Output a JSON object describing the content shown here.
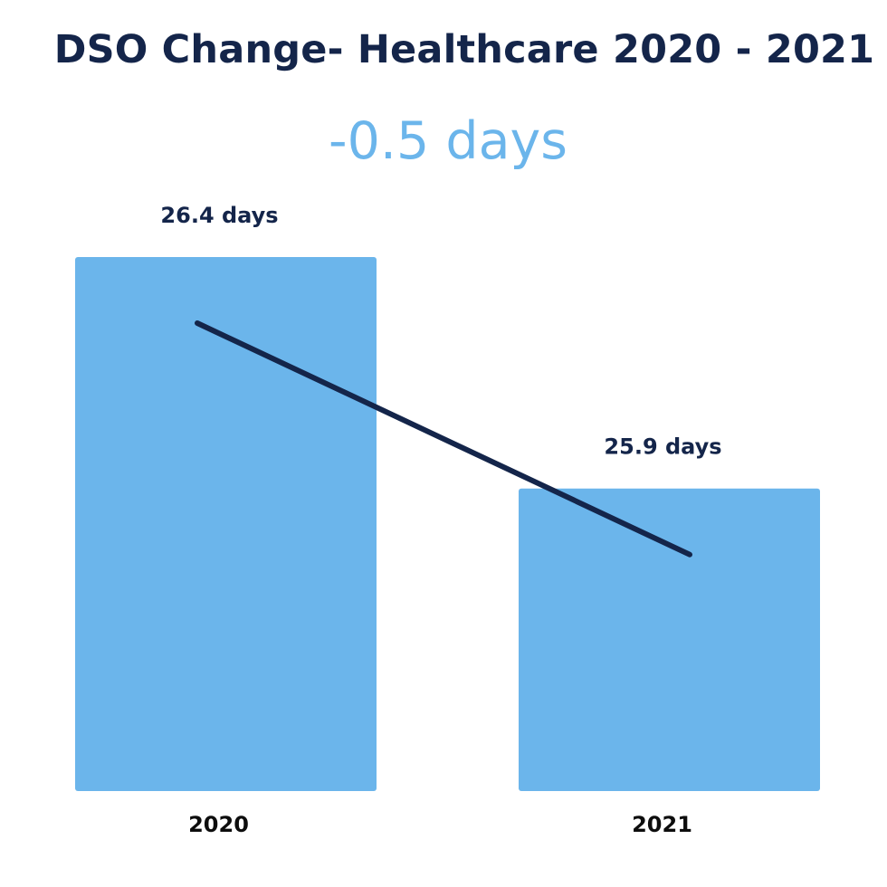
{
  "chart_data": {
    "type": "bar",
    "title": "DSO Change- Healthcare 2020 - 2021",
    "subtitle": "-0.5 days",
    "categories": [
      "2020",
      "2021"
    ],
    "values": [
      26.4,
      25.9
    ],
    "data_labels": [
      "26.4 days",
      "25.9 days"
    ],
    "value_unit": "days",
    "trend_line": true,
    "xlabel": "",
    "ylabel": "",
    "grid": false,
    "legend": "none",
    "colors": {
      "bar": "#6bb5eb",
      "trend_line": "#14254a",
      "title": "#14254a",
      "subtitle": "#6bb5eb",
      "category_text": "#0d0d0d"
    }
  }
}
